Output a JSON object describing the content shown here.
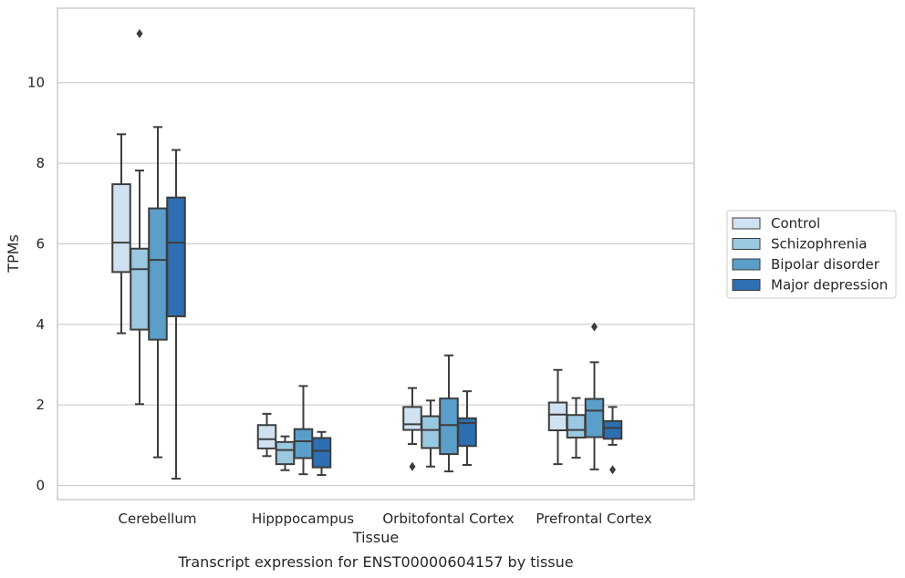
{
  "chart_data": {
    "type": "box",
    "xlabel": "Tissue",
    "ylabel": "TPMs",
    "caption": "Transcript expression for ENST00000604157 by tissue",
    "ylim": [
      -0.35,
      11.85
    ],
    "yticks": [
      0,
      2,
      4,
      6,
      8,
      10
    ],
    "grid": "horizontal",
    "legend_placement": "right",
    "categories": [
      "Cerebellum",
      "Hipppocampus",
      "Orbitofontal Cortex",
      "Prefrontal Cortex"
    ],
    "series": [
      {
        "name": "Control",
        "color": "#d0e1f2",
        "boxes": [
          {
            "whisker_low": 3.78,
            "q1": 5.3,
            "median": 6.03,
            "q3": 7.48,
            "whisker_high": 8.72,
            "outliers": []
          },
          {
            "whisker_low": 0.73,
            "q1": 0.92,
            "median": 1.15,
            "q3": 1.5,
            "whisker_high": 1.78,
            "outliers": []
          },
          {
            "whisker_low": 1.03,
            "q1": 1.38,
            "median": 1.52,
            "q3": 1.95,
            "whisker_high": 2.42,
            "outliers": [
              0.47
            ]
          },
          {
            "whisker_low": 0.53,
            "q1": 1.37,
            "median": 1.76,
            "q3": 2.06,
            "whisker_high": 2.87,
            "outliers": []
          }
        ]
      },
      {
        "name": "Schizophrenia",
        "color": "#9ac8e0",
        "boxes": [
          {
            "whisker_low": 2.02,
            "q1": 3.87,
            "median": 5.37,
            "q3": 5.88,
            "whisker_high": 7.82,
            "outliers": [
              11.22
            ]
          },
          {
            "whisker_low": 0.38,
            "q1": 0.53,
            "median": 0.88,
            "q3": 1.08,
            "whisker_high": 1.22,
            "outliers": []
          },
          {
            "whisker_low": 0.47,
            "q1": 0.93,
            "median": 1.38,
            "q3": 1.72,
            "whisker_high": 2.11,
            "outliers": []
          },
          {
            "whisker_low": 0.69,
            "q1": 1.19,
            "median": 1.38,
            "q3": 1.75,
            "whisker_high": 2.17,
            "outliers": []
          }
        ]
      },
      {
        "name": "Bipolar disorder",
        "color": "#5a9ec9",
        "boxes": [
          {
            "whisker_low": 0.7,
            "q1": 3.62,
            "median": 5.6,
            "q3": 6.88,
            "whisker_high": 8.9,
            "outliers": []
          },
          {
            "whisker_low": 0.28,
            "q1": 0.68,
            "median": 1.1,
            "q3": 1.4,
            "whisker_high": 2.47,
            "outliers": []
          },
          {
            "whisker_low": 0.35,
            "q1": 0.78,
            "median": 1.5,
            "q3": 2.16,
            "whisker_high": 3.23,
            "outliers": []
          },
          {
            "whisker_low": 0.4,
            "q1": 1.2,
            "median": 1.86,
            "q3": 2.15,
            "whisker_high": 3.06,
            "outliers": [
              3.94
            ]
          }
        ]
      },
      {
        "name": "Major depression",
        "color": "#2d6fb0",
        "boxes": [
          {
            "whisker_low": 0.17,
            "q1": 4.2,
            "median": 6.03,
            "q3": 7.15,
            "whisker_high": 8.33,
            "outliers": []
          },
          {
            "whisker_low": 0.26,
            "q1": 0.45,
            "median": 0.86,
            "q3": 1.18,
            "whisker_high": 1.33,
            "outliers": []
          },
          {
            "whisker_low": 0.51,
            "q1": 0.98,
            "median": 1.55,
            "q3": 1.67,
            "whisker_high": 2.34,
            "outliers": []
          },
          {
            "whisker_low": 1.01,
            "q1": 1.16,
            "median": 1.43,
            "q3": 1.6,
            "whisker_high": 1.95,
            "outliers": [
              0.39
            ]
          }
        ]
      }
    ]
  }
}
